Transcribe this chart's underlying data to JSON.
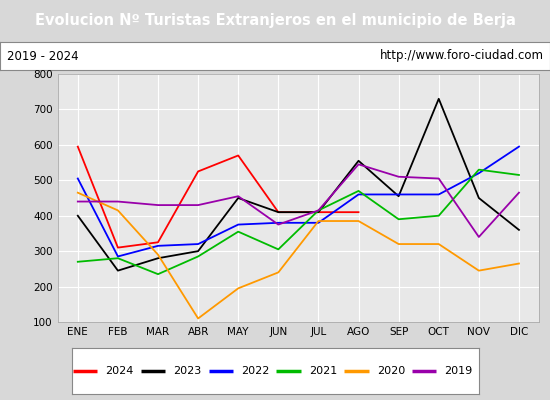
{
  "title": "Evolucion Nº Turistas Extranjeros en el municipio de Berja",
  "subtitle_left": "2019 - 2024",
  "subtitle_right": "http://www.foro-ciudad.com",
  "months": [
    "ENE",
    "FEB",
    "MAR",
    "ABR",
    "MAY",
    "JUN",
    "JUL",
    "AGO",
    "SEP",
    "OCT",
    "NOV",
    "DIC"
  ],
  "series": {
    "2024": [
      595,
      310,
      325,
      525,
      570,
      410,
      410,
      410,
      null,
      null,
      null,
      null
    ],
    "2023": [
      400,
      245,
      280,
      300,
      450,
      410,
      410,
      555,
      455,
      730,
      450,
      360
    ],
    "2022": [
      505,
      285,
      315,
      320,
      375,
      380,
      380,
      460,
      460,
      460,
      520,
      595
    ],
    "2021": [
      270,
      280,
      235,
      285,
      355,
      305,
      415,
      470,
      390,
      400,
      530,
      515
    ],
    "2020": [
      465,
      415,
      290,
      110,
      195,
      240,
      385,
      385,
      320,
      320,
      245,
      265
    ],
    "2019": [
      440,
      440,
      430,
      430,
      455,
      375,
      415,
      545,
      510,
      505,
      340,
      465
    ]
  },
  "colors": {
    "2024": "#ff0000",
    "2023": "#000000",
    "2022": "#0000ff",
    "2021": "#00bb00",
    "2020": "#ff9900",
    "2019": "#9900aa"
  },
  "ylim": [
    100,
    800
  ],
  "yticks": [
    100,
    200,
    300,
    400,
    500,
    600,
    700,
    800
  ],
  "title_bg": "#4472c4",
  "title_color": "#ffffff",
  "subtitle_bg": "#ffffff",
  "bg_color": "#d8d8d8",
  "plot_bg": "#e8e8e8"
}
